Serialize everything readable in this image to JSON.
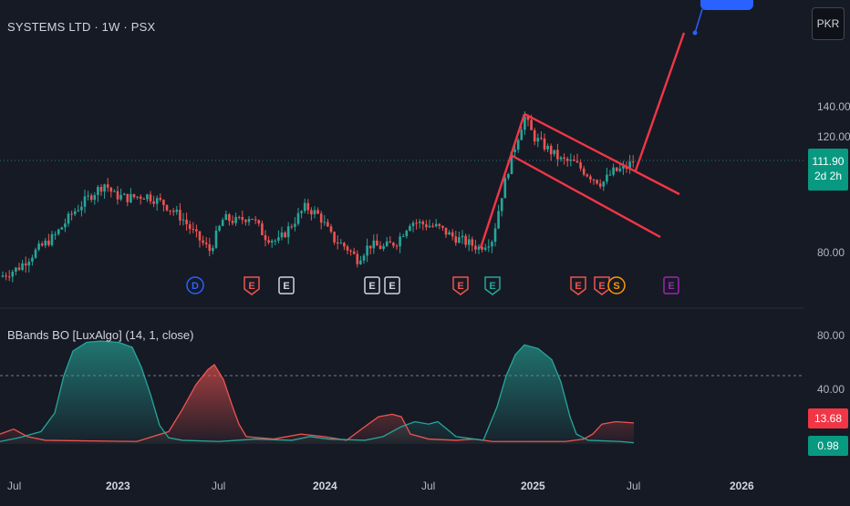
{
  "header": {
    "title": "SYSTEMS LTD · 1W · PSX",
    "currency_button": "PKR"
  },
  "price_axis": {
    "labels": [
      {
        "text": "140.00",
        "value": 140
      },
      {
        "text": "120.00",
        "value": 120
      },
      {
        "text": "80.00",
        "value": 80
      }
    ],
    "current_price": "111.90",
    "countdown": "2d 2h"
  },
  "indicator": {
    "title": "BBands BO [LuxAlgo] (14, 1, close)",
    "axis_labels": [
      {
        "text": "80.00",
        "value": 80
      },
      {
        "text": "40.00",
        "value": 40
      }
    ],
    "bear_value": "13.68",
    "bull_value": "0.98"
  },
  "time_axis": [
    {
      "text": "Jul",
      "bold": false
    },
    {
      "text": "2023",
      "bold": true
    },
    {
      "text": "Jul",
      "bold": false
    },
    {
      "text": "2024",
      "bold": true
    },
    {
      "text": "Jul",
      "bold": false
    },
    {
      "text": "2025",
      "bold": true
    },
    {
      "text": "Jul",
      "bold": false
    },
    {
      "text": "2026",
      "bold": true
    }
  ],
  "event_markers": [
    {
      "letter": "D",
      "kind": "dividend"
    },
    {
      "letter": "E",
      "kind": "earnings-miss"
    },
    {
      "letter": "E",
      "kind": "earnings-neutral"
    },
    {
      "letter": "E",
      "kind": "earnings-neutral"
    },
    {
      "letter": "E",
      "kind": "earnings-neutral"
    },
    {
      "letter": "E",
      "kind": "earnings-miss"
    },
    {
      "letter": "E",
      "kind": "earnings-beat"
    },
    {
      "letter": "E",
      "kind": "earnings-miss"
    },
    {
      "letter": "E",
      "kind": "earnings-miss"
    },
    {
      "letter": "S",
      "kind": "split"
    },
    {
      "letter": "E",
      "kind": "earnings-upcoming"
    }
  ],
  "colors": {
    "background": "#161a25",
    "up": "#26a69a",
    "down": "#ef5350",
    "drawing": "#f23645",
    "price_badge": "#089981",
    "dividend": "#2962ff",
    "split": "#ff9800",
    "upcoming": "#9c27b0"
  }
}
